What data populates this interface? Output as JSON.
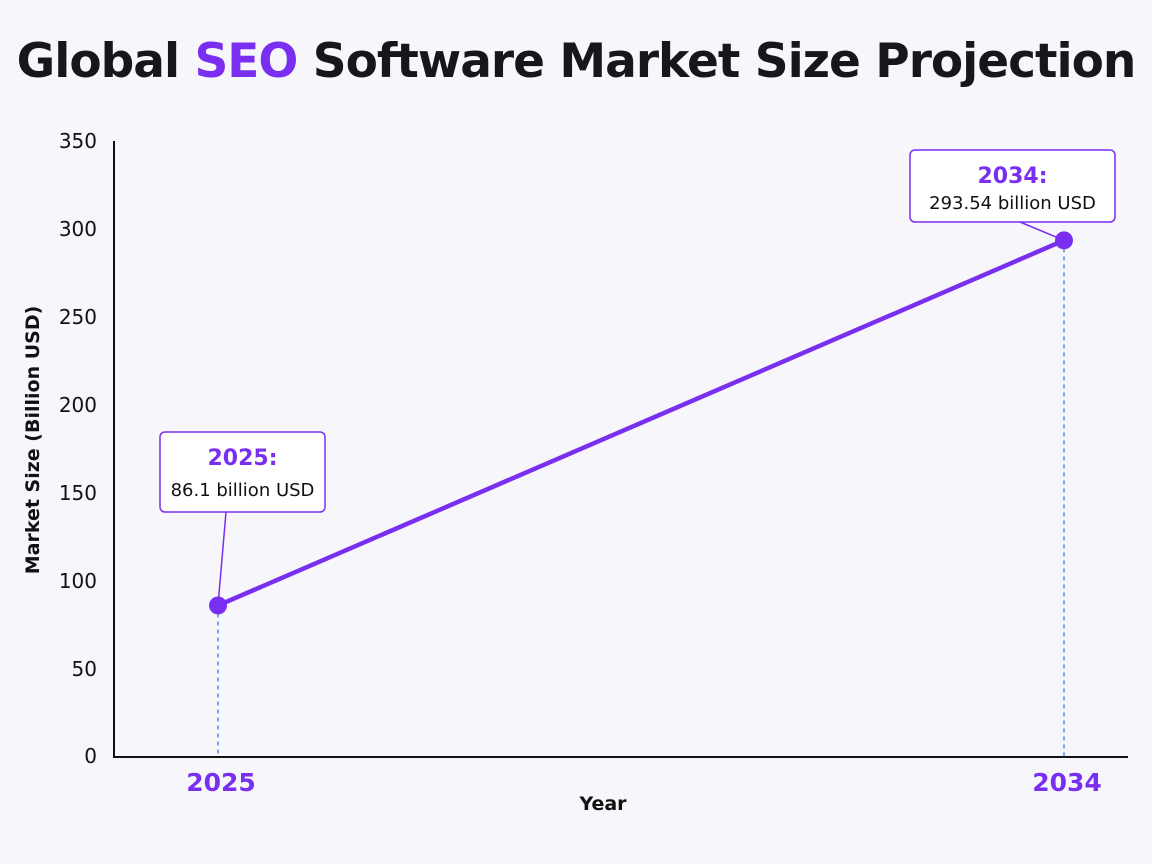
{
  "colors": {
    "accent": "#7a2ff0",
    "axis": "#111111",
    "guide": "#3a7be0",
    "title": "#16161d",
    "background": "#f7f7fb",
    "callout_bg": "#ffffff"
  },
  "chart_data": {
    "type": "line",
    "title_parts": [
      "Global ",
      "SEO",
      " Software Market Size Projection"
    ],
    "xlabel": "Year",
    "ylabel": "Market Size (Billion USD)",
    "ylim": [
      0,
      350
    ],
    "yticks": [
      "0",
      "50",
      "100",
      "150",
      "200",
      "250",
      "300",
      "350"
    ],
    "grid": false,
    "x": [
      "2025",
      "2034"
    ],
    "series": [
      {
        "values": [
          86.1,
          293.54
        ]
      }
    ],
    "annotations": [
      {
        "year": "2025:",
        "text": "86.1 billion USD"
      },
      {
        "year": "2034:",
        "text": "293.54 billion USD"
      }
    ]
  }
}
